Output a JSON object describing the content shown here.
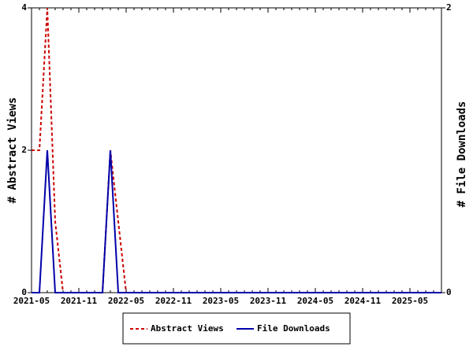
{
  "chart_data": {
    "type": "line",
    "categories": [
      "2021-05",
      null,
      null,
      null,
      null,
      null,
      "2021-11",
      null,
      null,
      null,
      null,
      null,
      "2022-05",
      null,
      null,
      null,
      null,
      null,
      "2022-11",
      null,
      null,
      null,
      null,
      null,
      "2023-05",
      null,
      null,
      null,
      null,
      null,
      "2023-11",
      null,
      null,
      null,
      null,
      null,
      "2024-05",
      null,
      null,
      null,
      null,
      null,
      "2024-11",
      null,
      null,
      null,
      null,
      null,
      "2025-05",
      null,
      null,
      null,
      null
    ],
    "ylabel": "# Abstract Views",
    "y2label": "# File Downloads",
    "ylim": [
      0,
      4
    ],
    "yticks": [
      0,
      2,
      4
    ],
    "y2lim": [
      0,
      2
    ],
    "y2ticks": [
      0,
      2
    ],
    "legend": "bottom",
    "series": [
      {
        "name": "Abstract Views",
        "color": "#cc0000",
        "style": "dashed",
        "values": [
          2,
          2,
          4,
          1,
          0,
          0,
          0,
          0,
          0,
          0,
          2,
          1,
          0,
          0,
          0,
          0,
          0,
          0,
          0,
          0,
          0,
          0,
          0,
          0,
          0,
          0,
          0,
          0,
          0,
          0,
          0,
          0,
          0,
          0,
          0,
          0,
          0,
          0,
          0,
          0,
          0,
          0,
          0,
          0,
          0,
          0,
          0,
          0,
          0,
          0,
          0,
          0,
          0
        ]
      },
      {
        "name": "File Downloads",
        "color": "#0000aa",
        "style": "solid",
        "axis": "y2",
        "values": [
          0,
          0,
          1,
          0,
          0,
          0,
          0,
          0,
          0,
          0,
          1,
          0,
          0,
          0,
          0,
          0,
          0,
          0,
          0,
          0,
          0,
          0,
          0,
          0,
          0,
          0,
          0,
          0,
          0,
          0,
          0,
          0,
          0,
          0,
          0,
          0,
          0,
          0,
          0,
          0,
          0,
          0,
          0,
          0,
          0,
          0,
          0,
          0,
          0,
          0,
          0,
          0,
          0
        ]
      }
    ]
  }
}
